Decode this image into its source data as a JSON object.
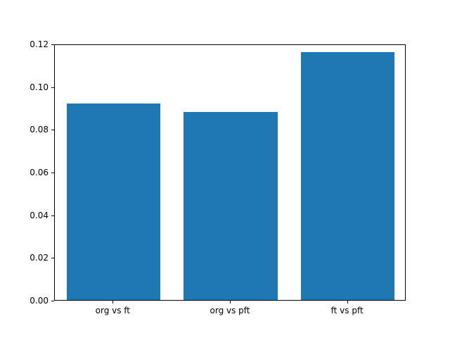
{
  "chart_data": {
    "type": "bar",
    "categories": [
      "org vs ft",
      "org vs pft",
      "ft vs pft"
    ],
    "values": [
      0.092,
      0.088,
      0.116
    ],
    "title": "",
    "xlabel": "",
    "ylabel": "",
    "ylim": [
      0.0,
      0.12
    ],
    "yticks": [
      0.0,
      0.02,
      0.04,
      0.06,
      0.08,
      0.1,
      0.12
    ],
    "ytick_decimals": 2,
    "bar_color": "#1f77b4",
    "bar_width_fraction": 0.8,
    "grid": false,
    "legend": "none"
  }
}
